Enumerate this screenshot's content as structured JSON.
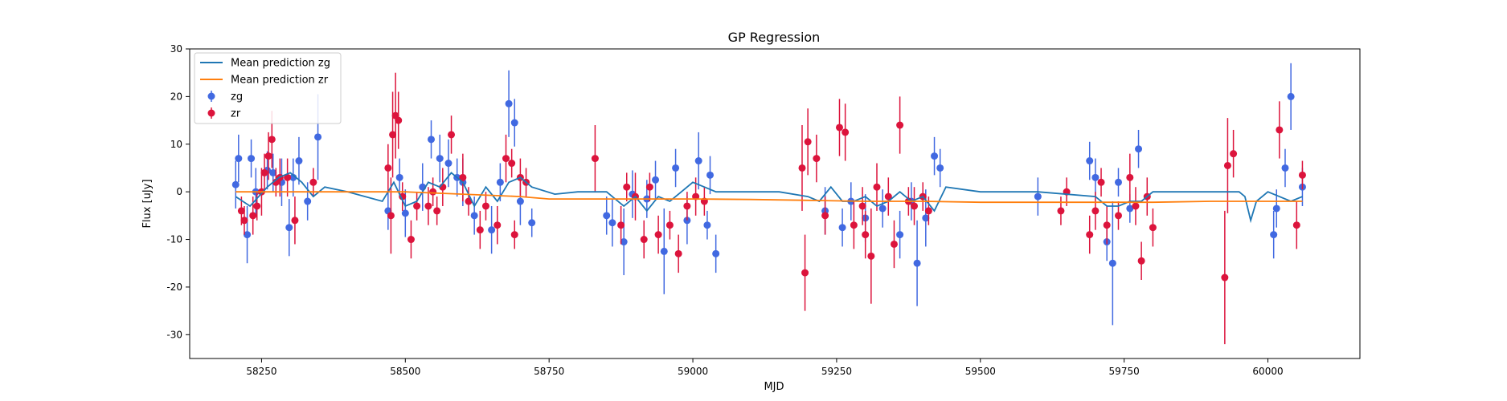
{
  "chart_data": {
    "type": "scatter",
    "title": "GP Regression",
    "xlabel": "MJD",
    "ylabel": "Flux [uJy]",
    "xlim": [
      58125,
      60160
    ],
    "ylim": [
      -35,
      30
    ],
    "xticks": [
      58250,
      58500,
      58750,
      59000,
      59250,
      59500,
      59750,
      60000
    ],
    "yticks": [
      -30,
      -20,
      -10,
      0,
      10,
      20,
      30
    ],
    "grid": false,
    "legend_position": "top-left",
    "legend": [
      "Mean prediction zg",
      "Mean prediction zr",
      "zg",
      "zr"
    ],
    "colors": {
      "zg": "#4169e1",
      "zr": "#dc143c",
      "pred_zg": "#1f77b4",
      "pred_zr": "#ff7f0e"
    },
    "series": [
      {
        "name": "Mean prediction zg",
        "kind": "line",
        "x": [
          58205,
          58230,
          58260,
          58280,
          58300,
          58320,
          58340,
          58360,
          58400,
          58460,
          58480,
          58500,
          58520,
          58540,
          58560,
          58580,
          58600,
          58620,
          58640,
          58660,
          58680,
          58700,
          58720,
          58760,
          58800,
          58850,
          58880,
          58900,
          58920,
          58940,
          58960,
          58980,
          59000,
          59020,
          59040,
          59060,
          59100,
          59150,
          59200,
          59220,
          59240,
          59260,
          59280,
          59300,
          59320,
          59340,
          59360,
          59380,
          59400,
          59420,
          59440,
          59500,
          59600,
          59700,
          59720,
          59740,
          59760,
          59780,
          59800,
          59850,
          59900,
          59950,
          59960,
          59970,
          59980,
          60000,
          60020,
          60040,
          60060
        ],
        "y": [
          -1,
          -3,
          1,
          3,
          4,
          2,
          -1,
          1,
          0,
          -2,
          2,
          -3,
          -2,
          2,
          1,
          4,
          2,
          -3,
          1,
          -2,
          2,
          3,
          1,
          -0.5,
          0,
          0,
          -3,
          -1,
          -4,
          -1,
          -2,
          0,
          2,
          1,
          0,
          0,
          0,
          0,
          -1,
          -2,
          1,
          -2,
          -2,
          -1,
          -3,
          -2,
          0,
          -2,
          -1,
          -4,
          1,
          0,
          0,
          -1,
          -3,
          -3,
          -2,
          -2,
          0,
          0,
          0,
          0,
          -1,
          -6,
          -2,
          0,
          -1,
          -2,
          -1
        ]
      },
      {
        "name": "Mean prediction zr",
        "kind": "line",
        "x": [
          58205,
          58300,
          58400,
          58500,
          58600,
          58700,
          58750,
          58800,
          58900,
          59000,
          59100,
          59200,
          59300,
          59400,
          59500,
          59600,
          59700,
          59800,
          59900,
          60000,
          60060
        ],
        "y": [
          0,
          0,
          0,
          0,
          -0.5,
          -1,
          -1.5,
          -1.5,
          -1.5,
          -1.5,
          -1.6,
          -1.8,
          -2,
          -2,
          -2.2,
          -2.2,
          -2.2,
          -2.2,
          -2,
          -2,
          -2
        ]
      },
      {
        "name": "zg",
        "kind": "errorbar",
        "x": [
          58205,
          58210,
          58225,
          58232,
          58240,
          58260,
          58270,
          58285,
          58298,
          58305,
          58315,
          58330,
          58348,
          58470,
          58490,
          58500,
          58530,
          58545,
          58560,
          58575,
          58590,
          58600,
          58620,
          58650,
          58665,
          58680,
          58690,
          58700,
          58720,
          58850,
          58860,
          58880,
          58895,
          58920,
          58935,
          58950,
          58970,
          58990,
          59010,
          59025,
          59030,
          59040,
          59230,
          59260,
          59275,
          59300,
          59330,
          59360,
          59380,
          59390,
          59405,
          59420,
          59430,
          59600,
          59690,
          59700,
          59720,
          59730,
          59740,
          59760,
          59775,
          60010,
          60015,
          60030,
          60040,
          60060
        ],
        "y": [
          1.5,
          7,
          -9,
          7,
          0,
          4.5,
          4,
          2,
          -7.5,
          3,
          6.5,
          -2,
          11.5,
          -4,
          3,
          -4.5,
          1,
          11,
          7,
          6,
          3,
          2,
          -5,
          -8,
          2,
          18.5,
          14.5,
          -2,
          -6.5,
          -5,
          -6.5,
          -10.5,
          -0.5,
          -1.5,
          2.5,
          -12.5,
          5,
          -6,
          6.5,
          -7,
          3.5,
          -13,
          -4,
          -7.5,
          -2,
          -5.5,
          -3.5,
          -9,
          -2,
          -15,
          -5.5,
          7.5,
          5,
          -1,
          6.5,
          3,
          -10.5,
          -15,
          2,
          -3.5,
          9,
          -9,
          -3.5,
          5,
          20,
          1
        ],
        "yerr": [
          5,
          5,
          6,
          4,
          5,
          4,
          4,
          5,
          6,
          4,
          5,
          4,
          9,
          4,
          4,
          5,
          5,
          4,
          5,
          5,
          4,
          5,
          4,
          5,
          4,
          7,
          5,
          5,
          3,
          4,
          5,
          7,
          5,
          4,
          4,
          9,
          4,
          5,
          6,
          3,
          4,
          4,
          5,
          4,
          4,
          5,
          4,
          5,
          4,
          9,
          6,
          4,
          4,
          4,
          4,
          4,
          4,
          13,
          3,
          3,
          4,
          5,
          4,
          4,
          7,
          4
        ]
      },
      {
        "name": "zr",
        "kind": "errorbar",
        "x": [
          58215,
          58220,
          58235,
          58242,
          58250,
          58255,
          58262,
          58268,
          58275,
          58282,
          58295,
          58308,
          58340,
          58470,
          58475,
          58478,
          58483,
          58488,
          58495,
          58510,
          58520,
          58540,
          58548,
          58555,
          58565,
          58580,
          58600,
          58610,
          58630,
          58640,
          58660,
          58675,
          58685,
          58690,
          58700,
          58710,
          58830,
          58875,
          58885,
          58900,
          58915,
          58925,
          58940,
          58960,
          58975,
          58990,
          59005,
          59020,
          59190,
          59195,
          59200,
          59215,
          59230,
          59255,
          59265,
          59280,
          59295,
          59300,
          59310,
          59320,
          59340,
          59350,
          59360,
          59375,
          59385,
          59400,
          59410,
          59640,
          59650,
          59690,
          59700,
          59710,
          59720,
          59740,
          59760,
          59770,
          59780,
          59790,
          59800,
          59925,
          59930,
          59940,
          60020,
          60050,
          60060
        ],
        "y": [
          -4,
          -6,
          -5,
          -3,
          0,
          4,
          7.5,
          11,
          2,
          3,
          3,
          -6,
          2,
          5,
          -5,
          12,
          16,
          15,
          -1,
          -10,
          -3,
          -3,
          0,
          -4,
          1,
          12,
          3,
          -2,
          -8,
          -3,
          -7,
          7,
          6,
          -9,
          3,
          2,
          7,
          -7,
          1,
          -1,
          -10,
          1,
          -9,
          -7,
          -13,
          -3,
          -1,
          -2,
          5,
          -17,
          10.5,
          7,
          -5,
          13.5,
          12.5,
          -7,
          -3,
          -9,
          -13.5,
          1,
          -1,
          -11,
          14,
          -2,
          -3,
          -1,
          -4,
          -4,
          0,
          -9,
          -4,
          2,
          -7,
          -5,
          3,
          -3,
          -14.5,
          -1,
          -7.5,
          -18,
          5.5,
          8,
          13,
          -7,
          3.5
        ],
        "yerr": [
          3,
          3,
          4,
          3,
          5,
          4,
          5,
          6,
          3,
          4,
          4,
          5,
          3,
          5,
          8,
          9,
          9,
          6,
          3,
          4,
          3,
          4,
          3,
          3,
          4,
          4,
          5,
          3,
          4,
          3,
          4,
          5,
          3,
          3,
          4,
          3,
          7,
          4,
          3,
          5,
          4,
          3,
          4,
          3,
          4,
          3,
          4,
          3,
          9,
          8,
          7,
          5,
          4,
          6,
          6,
          5,
          4,
          5,
          10,
          5,
          4,
          5,
          6,
          3,
          4,
          3,
          3,
          3,
          3,
          4,
          4,
          3,
          4,
          3,
          5,
          4,
          4,
          4,
          4,
          14,
          10,
          5,
          6,
          5,
          3
        ]
      }
    ]
  }
}
